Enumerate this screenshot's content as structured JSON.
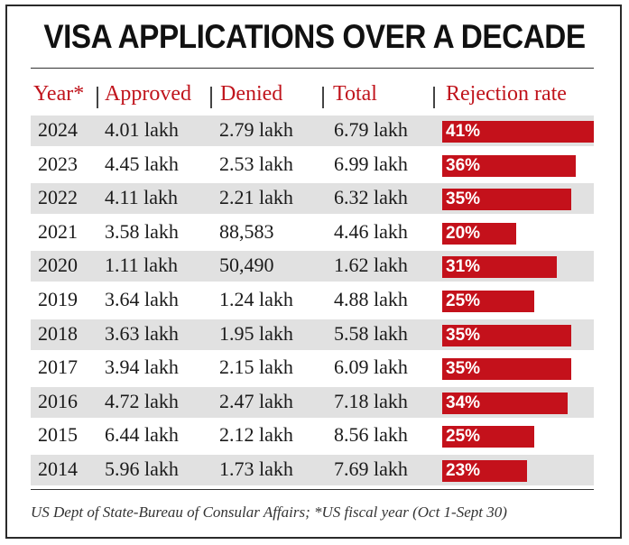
{
  "title": "VISA APPLICATIONS OVER A DECADE",
  "headers": {
    "year": "Year*",
    "approved": "Approved",
    "denied": "Denied",
    "total": "Total",
    "rejection_rate": "Rejection rate"
  },
  "source": "US Dept of State-Bureau of Consular Affairs; *US fiscal year (Oct 1-Sept 30)",
  "colors": {
    "bar": "#c4111b",
    "header_text": "#c0141c",
    "shaded_row": "#e1e1e1"
  },
  "chart_data": {
    "type": "table",
    "columns": [
      "Year*",
      "Approved",
      "Denied",
      "Total",
      "Rejection rate"
    ],
    "rows": [
      {
        "year": "2024",
        "approved": "4.01 lakh",
        "denied": "2.79 lakh",
        "total": "6.79 lakh",
        "rate": 41,
        "rate_label": "41%"
      },
      {
        "year": "2023",
        "approved": "4.45 lakh",
        "denied": "2.53 lakh",
        "total": "6.99 lakh",
        "rate": 36,
        "rate_label": "36%"
      },
      {
        "year": "2022",
        "approved": "4.11 lakh",
        "denied": "2.21 lakh",
        "total": "6.32 lakh",
        "rate": 35,
        "rate_label": "35%"
      },
      {
        "year": "2021",
        "approved": "3.58 lakh",
        "denied": "88,583",
        "total": "4.46 lakh",
        "rate": 20,
        "rate_label": "20%"
      },
      {
        "year": "2020",
        "approved": "1.11 lakh",
        "denied": "50,490",
        "total": "1.62 lakh",
        "rate": 31,
        "rate_label": "31%"
      },
      {
        "year": "2019",
        "approved": "3.64 lakh",
        "denied": "1.24 lakh",
        "total": "4.88 lakh",
        "rate": 25,
        "rate_label": "25%"
      },
      {
        "year": "2018",
        "approved": "3.63 lakh",
        "denied": "1.95 lakh",
        "total": "5.58 lakh",
        "rate": 35,
        "rate_label": "35%"
      },
      {
        "year": "2017",
        "approved": "3.94 lakh",
        "denied": "2.15 lakh",
        "total": "6.09 lakh",
        "rate": 35,
        "rate_label": "35%"
      },
      {
        "year": "2016",
        "approved": "4.72 lakh",
        "denied": "2.47 lakh",
        "total": "7.18 lakh",
        "rate": 34,
        "rate_label": "34%"
      },
      {
        "year": "2015",
        "approved": "6.44 lakh",
        "denied": "2.12 lakh",
        "total": "8.56 lakh",
        "rate": 25,
        "rate_label": "25%"
      },
      {
        "year": "2014",
        "approved": "5.96 lakh",
        "denied": "1.73 lakh",
        "total": "7.69 lakh",
        "rate": 23,
        "rate_label": "23%"
      }
    ]
  }
}
